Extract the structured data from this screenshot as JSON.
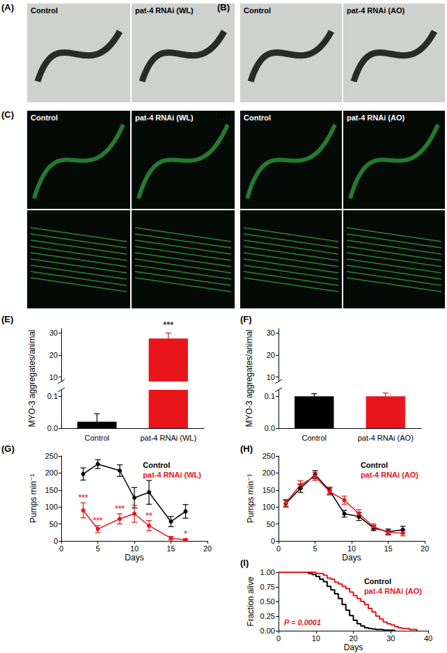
{
  "images": [
    {
      "title": "(A)",
      "panels": [
        "Control",
        "pat-4 RNAi (WL)"
      ]
    },
    {
      "title": "(B)",
      "panels": [
        "Control",
        "pat-4 RNAi (AO)"
      ]
    },
    {
      "title": "(C)",
      "panels": [
        "Control",
        "pat-4 RNAi (WL)"
      ]
    },
    {
      "title": "(D)",
      "panels": [
        "Control",
        "pat-4 RNAi (AO)"
      ]
    }
  ],
  "chart_data": [
    {
      "title": "(E)",
      "type": "bar",
      "categories": [
        "Control",
        "pat-4 RNAi (WL)"
      ],
      "values": [
        0.02,
        27.5
      ],
      "errors": [
        0.025,
        2.5
      ],
      "significance": [
        null,
        "***"
      ],
      "colors": [
        "#000000",
        "#e8161b"
      ],
      "ylabel": "MYO-3 aggregates/animal",
      "ylim_upper": [
        8,
        32
      ],
      "yticks_upper": [
        10,
        20,
        30
      ],
      "ylim_lower": [
        0,
        0.12
      ],
      "yticks_lower": [
        {
          "value": 0,
          "label": "0.0"
        },
        0.1
      ]
    },
    {
      "title": "(F)",
      "type": "bar",
      "categories": [
        "Control",
        "pat-4 RNAi (AO)"
      ],
      "values": [
        0.1,
        0.1
      ],
      "errors": [
        0.008,
        0.01
      ],
      "colors": [
        "#000000",
        "#e8161b"
      ],
      "ylabel": "MYO-3 aggregates/animal",
      "ylim_upper": [
        8,
        32
      ],
      "yticks_upper": [
        10,
        20,
        30
      ],
      "ylim_lower": [
        0,
        0.12
      ],
      "yticks_lower": [
        {
          "value": 0,
          "label": "0.0"
        },
        0.1
      ]
    },
    {
      "title": "(G)",
      "type": "line",
      "marker": "circle",
      "legend": "upper right",
      "xlabel": "Days",
      "ylabel": "Pumps min⁻¹",
      "xlim": [
        0,
        20
      ],
      "xticks": [
        0,
        5,
        10,
        15,
        20
      ],
      "ylim": [
        0,
        250
      ],
      "yticks": [
        0,
        50,
        100,
        150,
        200,
        250
      ],
      "x": [
        3,
        5,
        8,
        10,
        12,
        15,
        17
      ],
      "series": [
        {
          "name": "Control",
          "color": "#000000",
          "values": [
            197,
            226,
            207,
            127,
            143,
            57,
            87
          ],
          "errors": [
            18,
            13,
            17,
            30,
            35,
            15,
            20
          ]
        },
        {
          "name": "pat-4 RNAi (WL)",
          "color": "#e8161b",
          "values": [
            90,
            35,
            65,
            80,
            45,
            8,
            3
          ],
          "errors": [
            22,
            10,
            15,
            25,
            15,
            5,
            3
          ],
          "significance": [
            "***",
            "***",
            "***",
            null,
            "**",
            null,
            "*"
          ]
        }
      ]
    },
    {
      "title": "(H)",
      "type": "line",
      "marker": "circle",
      "legend": "upper right",
      "xlabel": "Days",
      "ylabel": "Pumps min⁻¹",
      "xlim": [
        0,
        20
      ],
      "xticks": [
        0,
        5,
        10,
        15,
        20
      ],
      "ylim": [
        0,
        250
      ],
      "yticks": [
        0,
        50,
        100,
        150,
        200,
        250
      ],
      "x": [
        1,
        3,
        5,
        7,
        9,
        11,
        13,
        15,
        17
      ],
      "series": [
        {
          "name": "Control",
          "color": "#000000",
          "values": [
            110,
            155,
            195,
            148,
            80,
            72,
            38,
            27,
            33
          ],
          "errors": [
            10,
            12,
            12,
            10,
            10,
            12,
            8,
            8,
            10
          ]
        },
        {
          "name": "pat-4 RNAi (AO)",
          "color": "#e8161b",
          "values": [
            112,
            165,
            190,
            145,
            120,
            80,
            42,
            25,
            23
          ],
          "errors": [
            10,
            12,
            12,
            10,
            12,
            12,
            8,
            8,
            8
          ]
        }
      ]
    },
    {
      "title": "(I)",
      "type": "line",
      "line_style": "step",
      "legend": "upper right",
      "xlabel": "Days",
      "ylabel": "Fraction alive",
      "xlim": [
        0,
        40
      ],
      "xticks": [
        0,
        10,
        20,
        30,
        40
      ],
      "ylim": [
        0,
        1
      ],
      "yticks": [
        {
          "value": 0,
          "label": "0.00"
        },
        {
          "value": 0.25,
          "label": "0.25"
        },
        {
          "value": 0.5,
          "label": "0.50"
        },
        {
          "value": 0.75,
          "label": "0.75"
        },
        {
          "value": 1,
          "label": "1.00"
        }
      ],
      "annotation": {
        "text": "P = 0.0001",
        "color": "#e8161b"
      },
      "series": [
        {
          "name": "Control",
          "color": "#000000",
          "x": [
            0,
            7,
            8,
            9,
            10,
            11,
            12,
            13,
            14,
            15,
            16,
            17,
            18,
            19,
            20,
            21,
            22,
            23,
            24,
            25,
            26,
            28,
            31
          ],
          "values": [
            1,
            1,
            0.98,
            0.96,
            0.93,
            0.88,
            0.84,
            0.76,
            0.7,
            0.63,
            0.55,
            0.45,
            0.35,
            0.26,
            0.18,
            0.12,
            0.08,
            0.05,
            0.04,
            0.03,
            0.02,
            0.01,
            0
          ]
        },
        {
          "name": "pat-4 RNAi (AO)",
          "color": "#e8161b",
          "x": [
            0,
            9,
            10,
            12,
            13,
            14,
            15,
            16,
            17,
            18,
            19,
            20,
            21,
            22,
            23,
            24,
            25,
            26,
            27,
            28,
            29,
            30,
            31,
            32,
            33,
            35,
            37
          ],
          "values": [
            1,
            1,
            0.98,
            0.95,
            0.9,
            0.88,
            0.83,
            0.8,
            0.76,
            0.72,
            0.66,
            0.6,
            0.55,
            0.5,
            0.45,
            0.38,
            0.32,
            0.25,
            0.2,
            0.15,
            0.12,
            0.1,
            0.07,
            0.05,
            0.04,
            0.02,
            0
          ]
        }
      ]
    }
  ]
}
